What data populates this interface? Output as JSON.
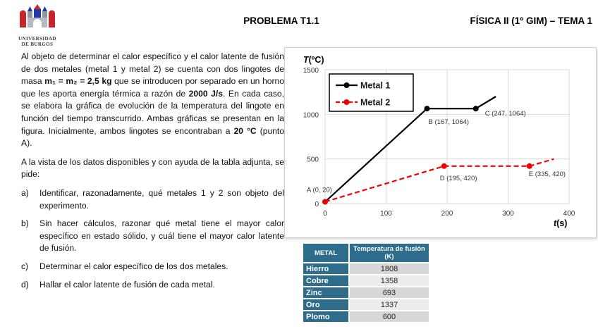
{
  "header": {
    "logo_line1": "UNIVERSIDAD",
    "logo_line2": "DE BURGOS",
    "center_title": "PROBLEMA T1.1",
    "right_title": "FÍSICA II (1º GIM) – TEMA 1"
  },
  "problem": {
    "intro_parts": [
      {
        "text": "Al objeto de determinar el calor específico y el calor latente de fusión de dos metales (metal 1 y metal 2) se cuenta con dos lingotes de masa ",
        "bold": false
      },
      {
        "text": "m₁ = m₂ = 2,5 kg",
        "bold": true
      },
      {
        "text": " que se introducen por separado en un horno que les aporta energía térmica a razón de ",
        "bold": false
      },
      {
        "text": "2000 J/s",
        "bold": true
      },
      {
        "text": ". En cada caso, se elabora la gráfica de evolución de la temperatura del lingote en función del tiempo transcurrido. Ambas gráficas se presentan en la figura. Inicialmente, ambos lingotes se encontraban a ",
        "bold": false
      },
      {
        "text": "20 °C",
        "bold": true
      },
      {
        "text": " (punto A).",
        "bold": false
      }
    ],
    "prompt": "A la vista de los datos disponibles y con ayuda de la tabla adjunta, se pide:",
    "items": [
      {
        "label": "a)",
        "text": "Identificar, razonadamente, qué metales 1 y 2 son objeto del experimento."
      },
      {
        "label": "b)",
        "text": "Sin hacer cálculos, razonar qué metal tiene el mayor calor específico en estado sólido, y cuál tiene el mayor calor latente de fusión."
      },
      {
        "label": "c)",
        "text": "Determinar el calor específico de los dos metales."
      },
      {
        "label": "d)",
        "text": "Hallar el calor latente de fusión de cada metal."
      }
    ]
  },
  "chart_data": {
    "type": "line",
    "xlabel": "t(s)",
    "ylabel": "T(ºC)",
    "xlim": [
      0,
      400
    ],
    "ylim": [
      0,
      1500
    ],
    "xticks": [
      0,
      100,
      200,
      300,
      400
    ],
    "yticks": [
      0,
      500,
      1000,
      1500
    ],
    "grid": true,
    "grid_color": "#d9d9d9",
    "legend_position": "top-left",
    "series": [
      {
        "name": "Metal 1",
        "color": "#000000",
        "style": "solid",
        "points": [
          [
            0,
            20
          ],
          [
            167,
            1064
          ],
          [
            247,
            1064
          ],
          [
            280,
            1200
          ]
        ],
        "markers": [
          [
            167,
            1064
          ],
          [
            247,
            1064
          ]
        ]
      },
      {
        "name": "Metal 2",
        "color": "#f20000",
        "style": "dashed",
        "points": [
          [
            0,
            20
          ],
          [
            195,
            420
          ],
          [
            335,
            420
          ],
          [
            375,
            500
          ]
        ],
        "markers": [
          [
            0,
            20
          ],
          [
            195,
            420
          ],
          [
            335,
            420
          ]
        ]
      }
    ],
    "point_labels": [
      {
        "name": "A",
        "text": "A (0, 20)",
        "at": [
          0,
          20
        ]
      },
      {
        "name": "B",
        "text": "B (167, 1064)",
        "at": [
          167,
          1064
        ]
      },
      {
        "name": "C",
        "text": "C (247, 1064)",
        "at": [
          247,
          1064
        ]
      },
      {
        "name": "D",
        "text": "D (195, 420)",
        "at": [
          195,
          420
        ]
      },
      {
        "name": "E",
        "text": "E (335, 420)",
        "at": [
          335,
          420
        ]
      }
    ]
  },
  "table": {
    "headers": [
      "METAL",
      "Temperatura de fusión (K)"
    ],
    "rows": [
      {
        "metal": "Hierro",
        "value": "1808"
      },
      {
        "metal": "Cobre",
        "value": "1358"
      },
      {
        "metal": "Zinc",
        "value": "693"
      },
      {
        "metal": "Oro",
        "value": "1337"
      },
      {
        "metal": "Plomo",
        "value": "600"
      }
    ],
    "header_bg": "#2E6C8C",
    "row_dark": "#d7d7d7",
    "row_light": "#ececec"
  }
}
